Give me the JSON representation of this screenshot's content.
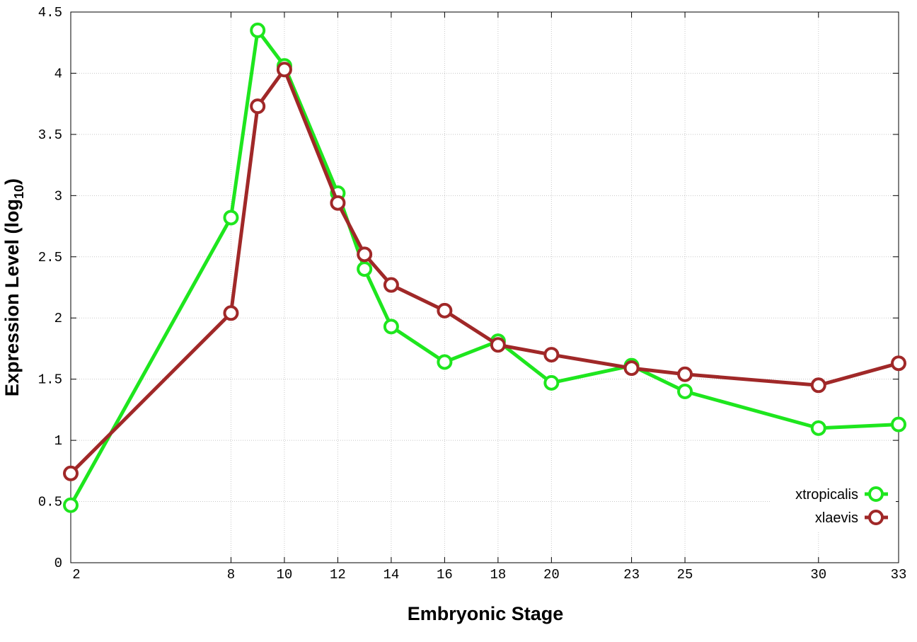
{
  "chart_data": {
    "type": "line",
    "title": "",
    "xlabel": "Embryonic Stage",
    "ylabel": {
      "main": "Expression Level (log",
      "sub": "10",
      "close": ")"
    },
    "xlim": [
      2,
      33
    ],
    "ylim": [
      0,
      4.5
    ],
    "grid": true,
    "legend_position": "bottom-right",
    "x_ticks": [
      2,
      8,
      10,
      12,
      14,
      16,
      18,
      20,
      23,
      25,
      30,
      33
    ],
    "y_ticks": [
      "0",
      "0.5",
      "1",
      "1.5",
      "2",
      "2.5",
      "3",
      "3.5",
      "4",
      "4.5"
    ],
    "x": [
      2,
      8,
      9,
      10,
      12,
      13,
      14,
      16,
      18,
      20,
      23,
      25,
      30,
      33
    ],
    "series": [
      {
        "name": "xtropicalis",
        "color": "#1ee61e",
        "values": [
          0.47,
          2.82,
          4.35,
          4.06,
          3.02,
          2.4,
          1.93,
          1.64,
          1.81,
          1.47,
          1.61,
          1.4,
          1.1,
          1.13
        ]
      },
      {
        "name": "xlaevis",
        "color": "#a02828",
        "values": [
          0.73,
          2.04,
          3.73,
          4.03,
          2.94,
          2.52,
          2.27,
          2.06,
          1.78,
          1.7,
          1.59,
          1.54,
          1.45,
          1.63
        ]
      }
    ]
  }
}
